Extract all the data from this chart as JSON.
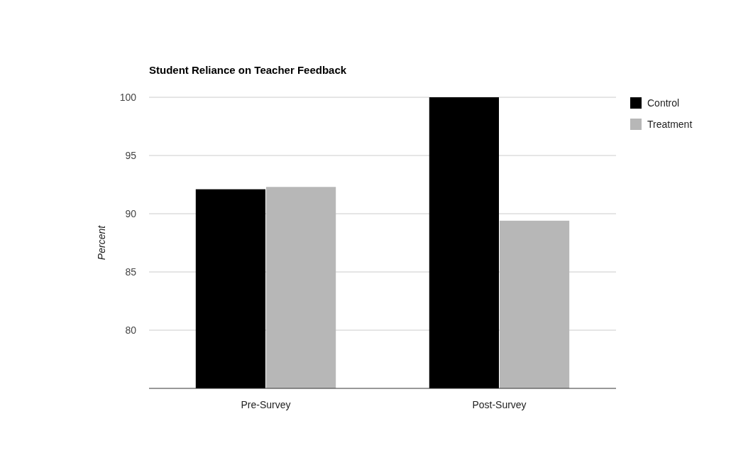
{
  "chart_data": {
    "type": "bar",
    "title": "Student Reliance on Teacher Feedback",
    "ylabel": "Percent",
    "categories": [
      "Pre-Survey",
      "Post-Survey"
    ],
    "series": [
      {
        "name": "Control",
        "color": "#000000",
        "values": [
          92.1,
          100
        ]
      },
      {
        "name": "Treatment",
        "color": "#b7b7b7",
        "values": [
          92.3,
          89.4
        ]
      }
    ],
    "ylim": [
      75,
      100
    ],
    "yticks": [
      80,
      85,
      90,
      95,
      100
    ],
    "grid": "y",
    "legend": "top right"
  }
}
